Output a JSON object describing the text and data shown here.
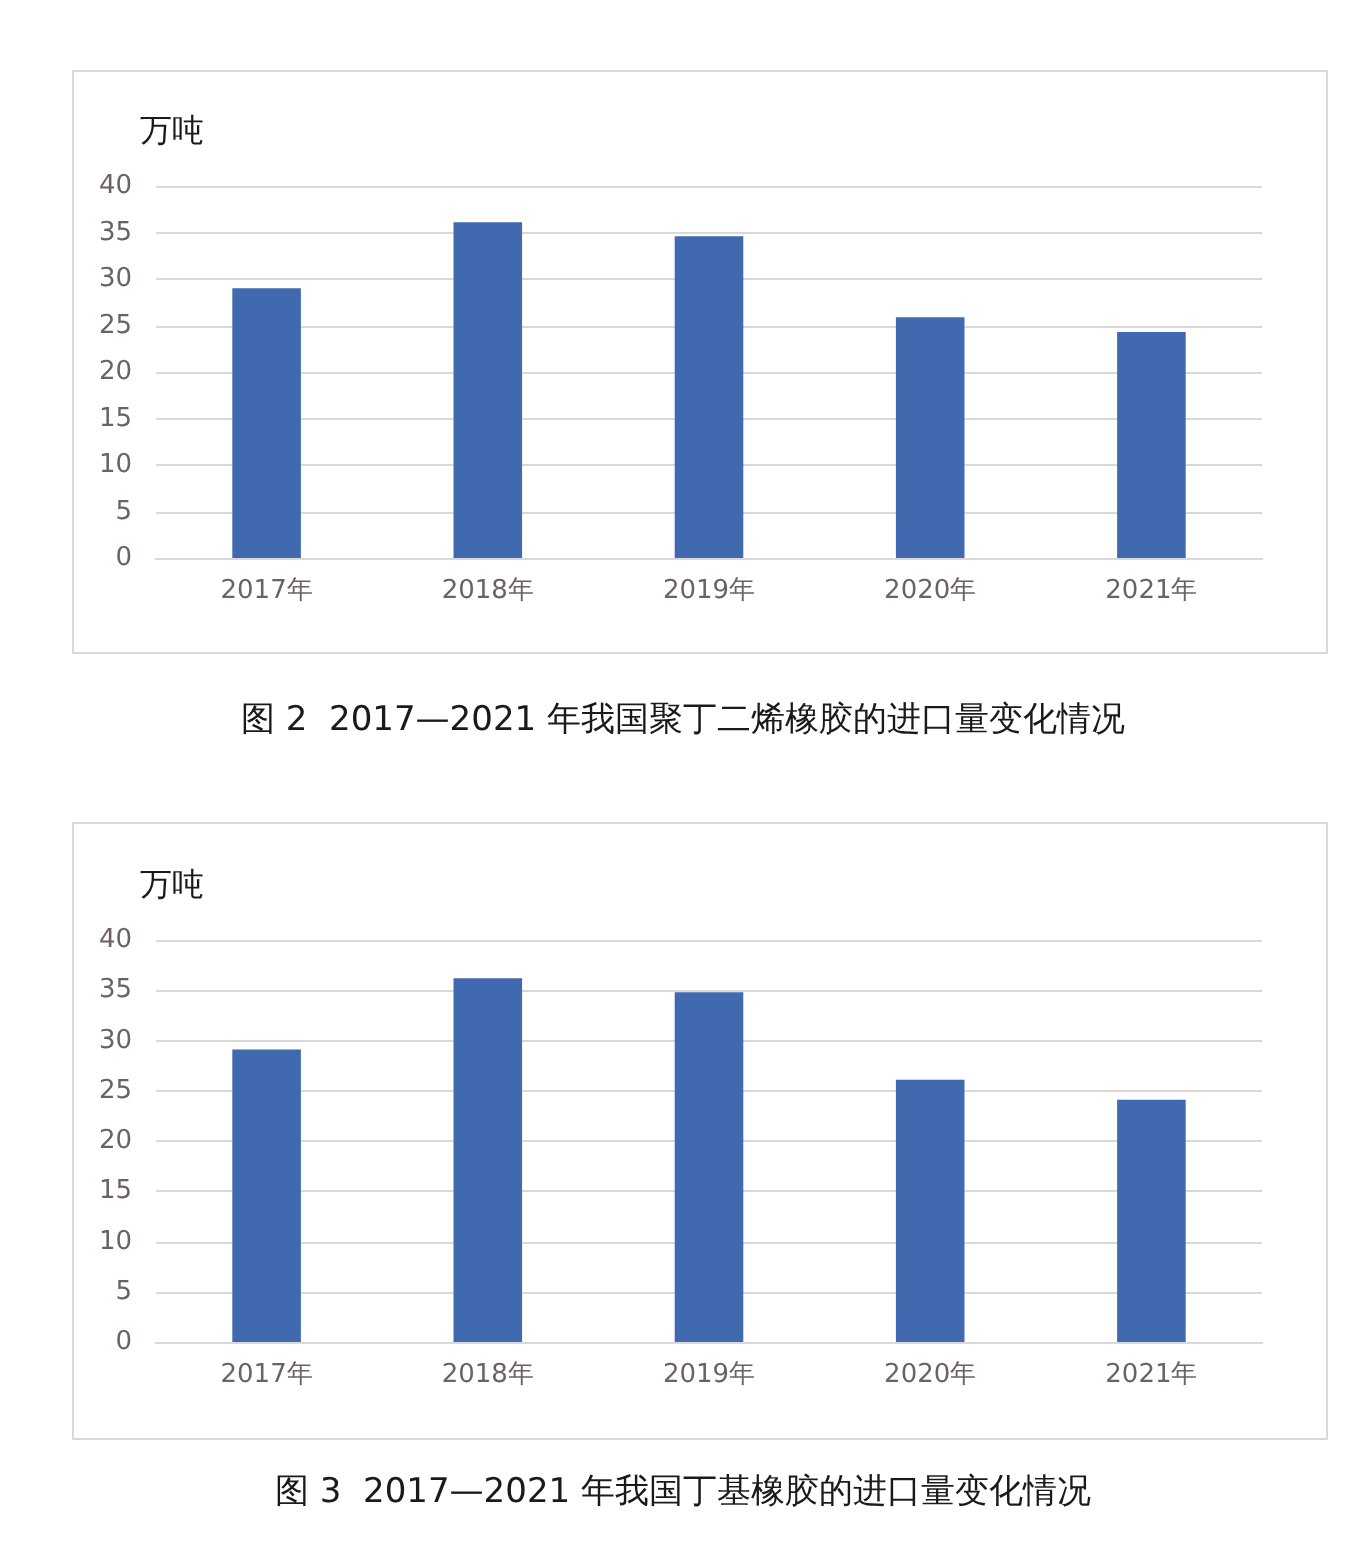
{
  "chart_data": [
    {
      "type": "bar",
      "title": "图 2  2017—2021 年我国聚丁二烯橡胶的进口量变化情况",
      "ylabel": "万吨",
      "categories": [
        "2017年",
        "2018年",
        "2019年",
        "2020年",
        "2021年"
      ],
      "values": [
        29.0,
        36.1,
        34.6,
        25.9,
        24.3
      ],
      "color": "#4169b0",
      "ylim": [
        0,
        40
      ],
      "yticks": [
        0,
        5,
        10,
        15,
        20,
        25,
        30,
        35,
        40
      ],
      "grid": "y"
    },
    {
      "type": "bar",
      "title": "图 3  2017—2021 年我国丁基橡胶的进口量变化情况",
      "ylabel": "万吨",
      "categories": [
        "2017年",
        "2018年",
        "2019年",
        "2020年",
        "2021年"
      ],
      "values": [
        29.1,
        36.2,
        34.8,
        26.1,
        24.1
      ],
      "color": "#4169b0",
      "ylim": [
        0,
        40
      ],
      "yticks": [
        0,
        5,
        10,
        15,
        20,
        25,
        30,
        35,
        40
      ],
      "grid": "y"
    }
  ]
}
